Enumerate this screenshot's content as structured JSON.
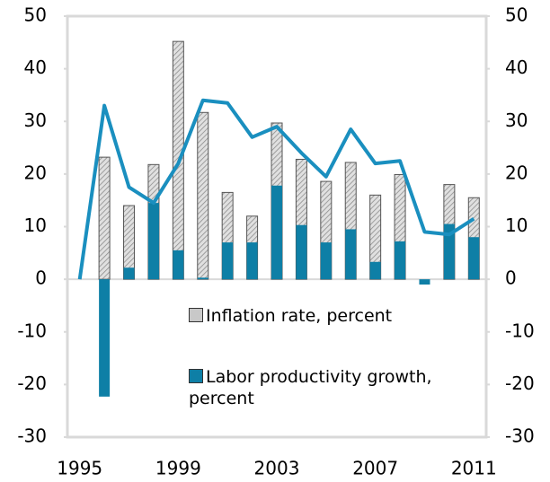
{
  "chart_data": {
    "type": "bar",
    "categories": [
      "1995",
      null,
      null,
      null,
      "1999",
      null,
      null,
      null,
      "2003",
      null,
      null,
      null,
      "2007",
      null,
      null,
      null,
      "2011"
    ],
    "series": [
      {
        "name": "Inflation rate, percent",
        "color": "#c8c8c8",
        "values": [
          null,
          23.2,
          14,
          21.8,
          45.2,
          31.7,
          16.5,
          12,
          29.7,
          22.8,
          18.6,
          22.2,
          16,
          19.9,
          0,
          18,
          15.5
        ]
      },
      {
        "name": "Labor productivity growth, percent",
        "color": "#0e7fa6",
        "values": [
          null,
          -22.3,
          2.2,
          14.5,
          5.5,
          0.3,
          7,
          7,
          17.8,
          10.3,
          7,
          9.5,
          3.3,
          7.2,
          -1,
          10.5,
          8
        ]
      },
      {
        "type": "line",
        "color": "#1a8fbf",
        "values": [
          0,
          33,
          17.5,
          14.5,
          22,
          34,
          33.5,
          27,
          29,
          24,
          19.5,
          28.5,
          22,
          22.5,
          9,
          8.5,
          11.5
        ]
      }
    ],
    "ylim": [
      -30,
      50
    ],
    "yticks": [
      -30,
      -20,
      -10,
      0,
      10,
      20,
      30,
      40,
      50
    ],
    "y2lim": [
      -30,
      50
    ],
    "y2ticks": [
      -30,
      -20,
      -10,
      0,
      10,
      20,
      30,
      40,
      50
    ]
  }
}
